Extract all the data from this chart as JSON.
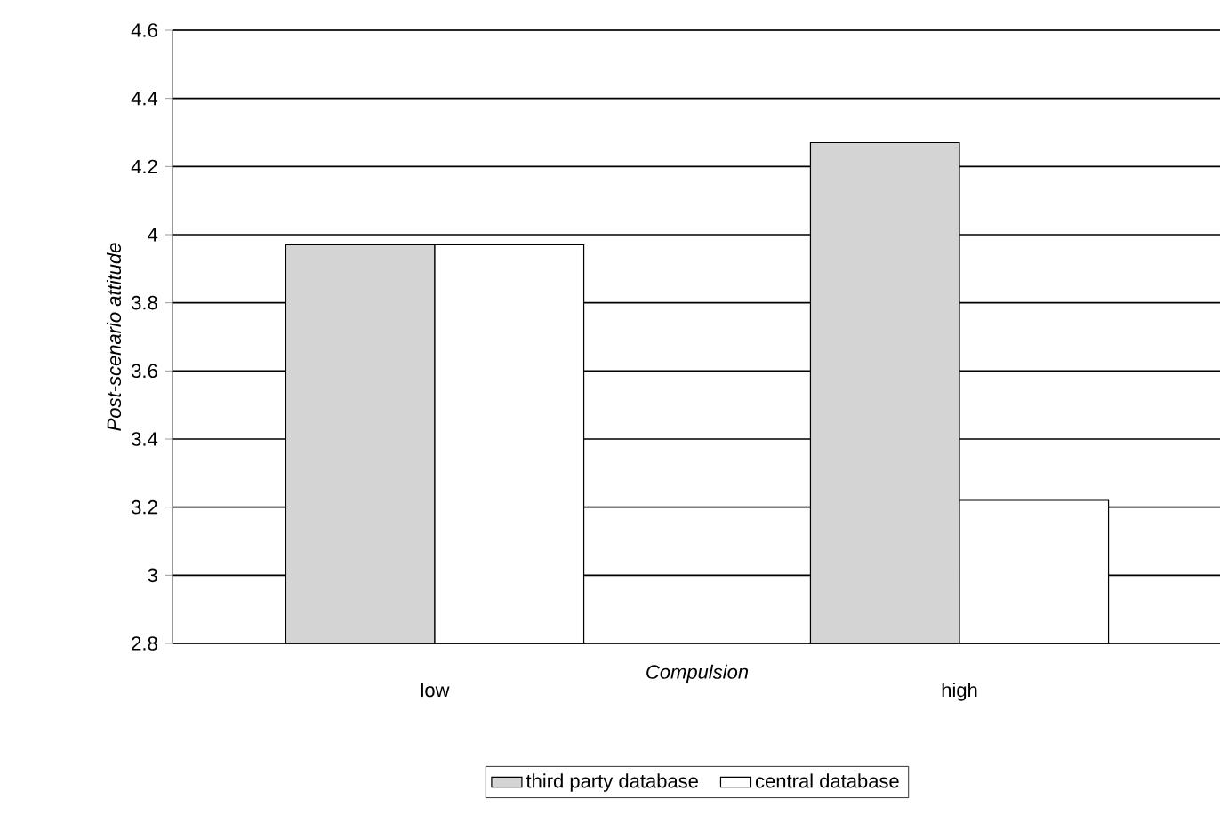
{
  "chart_data": {
    "type": "bar",
    "xlabel": "*Compulsion*",
    "ylabel": "*Post-scenario attitude*",
    "categories": [
      "low",
      "high"
    ],
    "series": [
      {
        "name": "third party database",
        "color": "#d4d4d4",
        "values": [
          3.97,
          4.27
        ]
      },
      {
        "name": "central database",
        "color": "#ffffff",
        "values": [
          3.97,
          3.22
        ]
      }
    ],
    "ylim": [
      2.8,
      4.6
    ],
    "yticks": [
      2.8,
      3,
      3.2,
      3.4,
      3.6,
      3.8,
      4,
      4.2,
      4.4,
      4.6
    ],
    "grid": "y",
    "legend": "bottom"
  }
}
